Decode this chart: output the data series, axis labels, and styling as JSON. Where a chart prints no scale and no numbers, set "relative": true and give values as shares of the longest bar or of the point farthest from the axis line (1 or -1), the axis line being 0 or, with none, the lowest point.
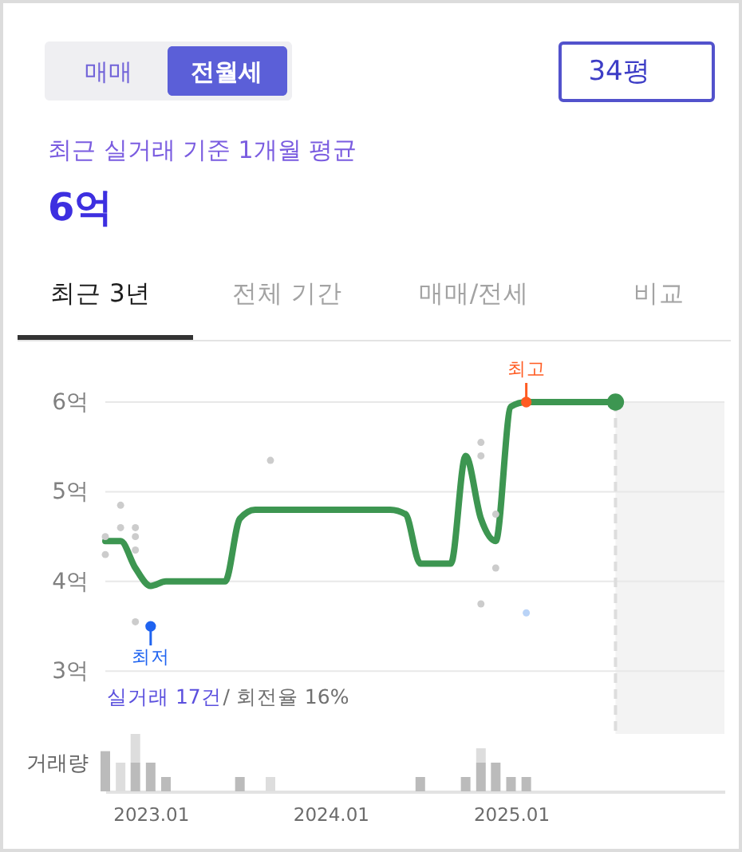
{
  "chart_data": [
    {
      "type": "other",
      "annotations": [
        "매매",
        "전월세",
        "34평",
        "최근 실거래 기준 1개월 평균",
        "6억",
        "최근 3년",
        "전체 기간",
        "매매/전세",
        "비교"
      ]
    },
    {
      "type": "line",
      "x": [
        "2022-10",
        "2022-11",
        "2022-12",
        "2023-01",
        "2023-02",
        "2023-03",
        "2023-04",
        "2023-05",
        "2023-06",
        "2023-07",
        "2023-08",
        "2023-09",
        "2023-10",
        "2023-11",
        "2023-12",
        "2024-01",
        "2024-02",
        "2024-03",
        "2024-04",
        "2024-05",
        "2024-06",
        "2024-07",
        "2024-08",
        "2024-09",
        "2024-10",
        "2024-11",
        "2024-12",
        "2025-01",
        "2025-02",
        "2025-03",
        "2025-04",
        "2025-05",
        "2025-06",
        "2025-07",
        "2025-08"
      ],
      "series": [
        {
          "type": "line",
          "color": "#3d9651",
          "values": [
            4.45,
            4.45,
            4.15,
            3.95,
            4.0,
            4.0,
            4.0,
            4.0,
            4.0,
            4.7,
            4.8,
            4.8,
            4.8,
            4.8,
            4.8,
            4.8,
            4.8,
            4.8,
            4.8,
            4.8,
            4.75,
            4.2,
            4.2,
            4.2,
            5.4,
            4.7,
            4.45,
            5.95,
            6.0,
            6.0,
            6.0,
            6.0,
            6.0,
            6.0,
            6.0
          ]
        },
        {
          "type": "scatter",
          "color": "#cccccc",
          "x": [
            "2022-10",
            "2022-10",
            "2022-11",
            "2022-11",
            "2022-12",
            "2022-12",
            "2022-12",
            "2022-12",
            "2023-09",
            "2024-11",
            "2024-11",
            "2024-11",
            "2024-12",
            "2024-12"
          ],
          "values": [
            4.5,
            4.3,
            4.85,
            4.6,
            4.6,
            4.5,
            4.35,
            3.55,
            5.35,
            5.55,
            5.4,
            3.75,
            4.75,
            4.15
          ]
        },
        {
          "type": "scatter",
          "color": "#b9d3f7",
          "x": [
            "2025-02"
          ],
          "values": [
            3.65
          ]
        },
        {
          "type": "scatter",
          "name": "최저",
          "color": "#1f63f0",
          "x": [
            "2023-01"
          ],
          "values": [
            3.5
          ]
        },
        {
          "type": "scatter",
          "name": "최고",
          "color": "#ff5b22",
          "x": [
            "2025-02"
          ],
          "values": [
            6.0
          ]
        },
        {
          "type": "scatter",
          "color": "#3d9651",
          "x": [
            "2025-08"
          ],
          "values": [
            6.0
          ]
        }
      ],
      "xlim": [
        "2022-10",
        "2026-03-10"
      ],
      "ylim": [
        2.3,
        6
      ],
      "yticks": [
        {
          "value": 3,
          "label": "3억"
        },
        {
          "value": 4,
          "label": "4억"
        },
        {
          "value": 5,
          "label": "5억"
        },
        {
          "value": 6,
          "label": "6억"
        }
      ],
      "grid": "y",
      "tick_labels": "y",
      "ref_lines": [
        {
          "axis": "x",
          "value": "2025-08",
          "color": "#dddddd",
          "line_style": "dashed"
        }
      ],
      "bands": [
        {
          "axis": "x",
          "from": "2025-08",
          "to": "2026-03-10",
          "color": "#f3f3f3"
        }
      ],
      "annotations": [
        "실거래 17건",
        "/ 회전율 16%"
      ]
    },
    {
      "type": "bar",
      "stacked": true,
      "relative": true,
      "x": [
        "2022-10",
        "2022-11",
        "2022-12",
        "2023-01",
        "2023-02",
        "2023-07",
        "2023-09",
        "2024-07",
        "2024-10",
        "2024-11",
        "2024-12",
        "2025-01",
        "2025-02"
      ],
      "series": [
        {
          "color": "#bbbbbb",
          "values": [
            0.7,
            null,
            0.5,
            0.5,
            0.25,
            0.25,
            null,
            0.25,
            0.25,
            0.5,
            0.5,
            0.25,
            0.25
          ]
        },
        {
          "color": "#dddddd",
          "values": [
            null,
            0.5,
            0.5,
            null,
            null,
            null,
            0.25,
            null,
            null,
            0.25,
            null,
            null,
            null
          ]
        }
      ],
      "xlim": [
        "2022-10",
        "2026-03-10"
      ],
      "xticks": [
        {
          "value": "2023-01",
          "label": "2023.01"
        },
        {
          "value": "2024-01",
          "label": "2024.01"
        },
        {
          "value": "2025-01",
          "label": "2025.01"
        }
      ],
      "ylabel": "거래량",
      "tick_labels": "x"
    }
  ]
}
